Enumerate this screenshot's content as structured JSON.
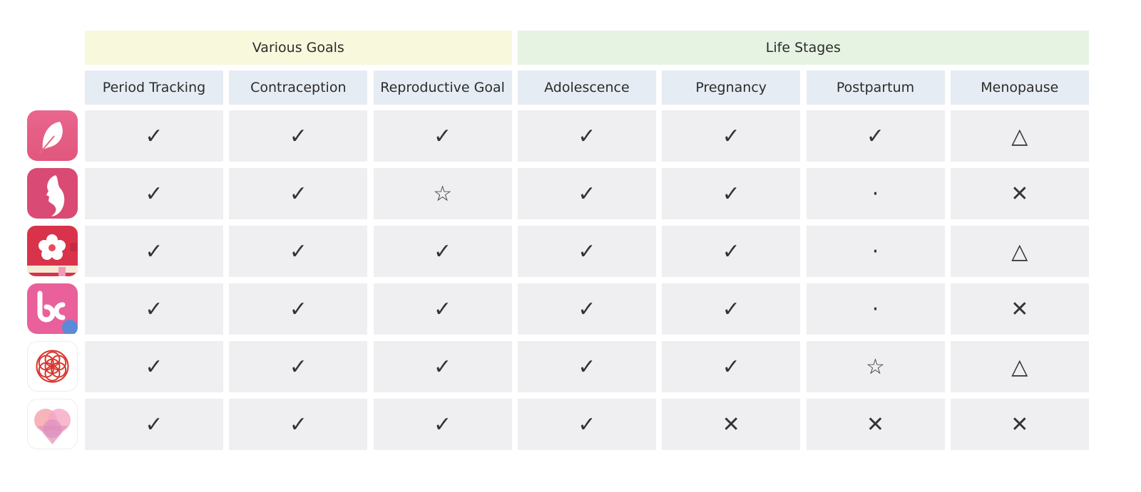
{
  "groups": [
    {
      "title": "Various Goals",
      "columns": [
        "Period Tracking",
        "Contraception",
        "Reproductive Goal"
      ]
    },
    {
      "title": "Life Stages",
      "columns": [
        "Adolescence",
        "Pregnancy",
        "Postpartum",
        "Menopause"
      ]
    }
  ],
  "rows": [
    [
      "✓",
      "✓",
      "✓",
      "✓",
      "✓",
      "✓",
      "△"
    ],
    [
      "✓",
      "✓",
      "☆",
      "✓",
      "✓",
      "·",
      "✕"
    ],
    [
      "✓",
      "✓",
      "✓",
      "✓",
      "✓",
      "·",
      "△"
    ],
    [
      "✓",
      "✓",
      "✓",
      "✓",
      "✓",
      "·",
      "✕"
    ],
    [
      "✓",
      "✓",
      "✓",
      "✓",
      "✓",
      "☆",
      "△"
    ],
    [
      "✓",
      "✓",
      "✓",
      "✓",
      "✕",
      "✕",
      "✕"
    ]
  ]
}
